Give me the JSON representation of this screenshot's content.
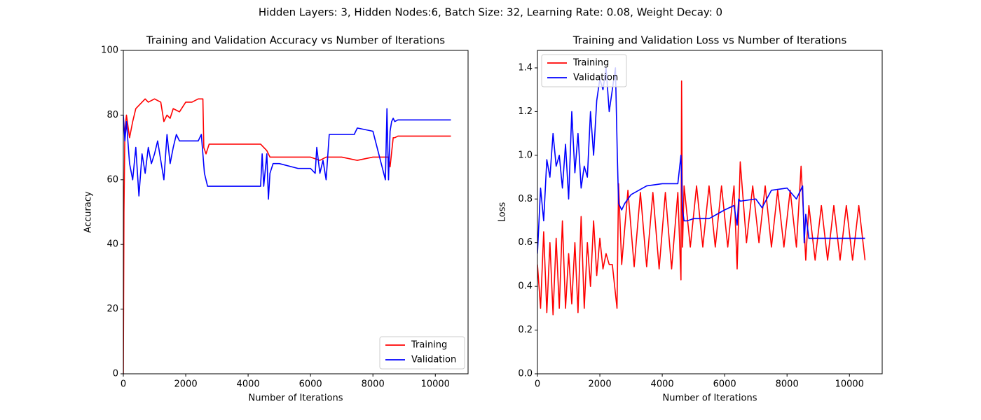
{
  "title": "Hidden Layers: 3, Hidden Nodes:6, Batch Size: 32, Learning Rate: 0.08, Weight Decay: 0",
  "chart_data": [
    {
      "type": "line",
      "title": "Training and Validation Accuracy vs Number of Iterations",
      "x_label": "Number of Iterations",
      "y_label": "Accuracy",
      "xlim": [
        0,
        11050
      ],
      "ylim": [
        0,
        100
      ],
      "xticks": [
        0,
        2000,
        4000,
        6000,
        8000,
        10000
      ],
      "yticks": [
        0,
        20,
        40,
        60,
        80,
        100
      ],
      "legend": "lower right",
      "series": [
        {
          "name": "Training",
          "color": "#ff0000",
          "x": [
            0,
            20,
            50,
            100,
            200,
            300,
            400,
            500,
            600,
            700,
            800,
            1000,
            1200,
            1300,
            1400,
            1500,
            1600,
            1800,
            2000,
            2200,
            2400,
            2550,
            2580,
            2650,
            2750,
            3000,
            4000,
            4400,
            4500,
            4600,
            4700,
            4800,
            6000,
            6300,
            6500,
            7000,
            7500,
            8000,
            8500,
            8550,
            8650,
            8700,
            8800,
            10500
          ],
          "values": [
            0,
            50,
            75,
            80,
            73,
            78,
            82,
            83,
            84,
            85,
            84,
            85,
            84,
            78,
            80,
            79,
            82,
            81,
            84,
            84,
            85,
            85,
            70,
            68,
            71,
            71,
            71,
            71,
            70,
            69,
            67,
            67,
            67,
            66,
            67,
            67,
            66,
            67,
            67,
            64,
            73,
            73,
            73.5,
            73.5
          ]
        },
        {
          "name": "Validation",
          "color": "#0000ff",
          "x": [
            0,
            50,
            100,
            200,
            300,
            400,
            500,
            600,
            700,
            800,
            900,
            1000,
            1100,
            1200,
            1300,
            1400,
            1500,
            1600,
            1700,
            1800,
            1900,
            2000,
            2200,
            2400,
            2500,
            2600,
            2650,
            2700,
            2800,
            3000,
            4400,
            4450,
            4500,
            4600,
            4650,
            4700,
            4800,
            5000,
            5600,
            6000,
            6150,
            6200,
            6300,
            6400,
            6500,
            6600,
            7000,
            7400,
            7500,
            8000,
            8400,
            8450,
            8500,
            8550,
            8600,
            8650,
            8700,
            8800,
            10500
          ],
          "values": [
            80,
            72,
            78,
            65,
            60,
            70,
            55,
            68,
            62,
            70,
            65,
            68,
            72,
            66,
            60,
            74,
            65,
            70,
            74,
            72,
            72,
            72,
            72,
            72,
            74,
            62,
            60,
            58,
            58,
            58,
            58,
            68,
            58,
            68,
            54,
            62,
            65,
            65,
            63.5,
            63.5,
            62,
            70,
            62,
            66,
            60,
            74,
            74,
            74,
            76,
            75,
            60,
            82,
            60,
            75,
            78,
            79,
            78,
            78.5,
            78.5
          ]
        }
      ]
    },
    {
      "type": "line",
      "title": "Training and Validation Loss vs Number of Iterations",
      "x_label": "Number of Iterations",
      "y_label": "Loss",
      "xlim": [
        0,
        11050
      ],
      "ylim": [
        0,
        1.48
      ],
      "xticks": [
        0,
        2000,
        4000,
        6000,
        8000,
        10000
      ],
      "yticks": [
        {
          "value": 0,
          "label": "0.0"
        },
        0.2,
        0.4,
        0.6,
        0.8,
        {
          "value": 1,
          "label": "1.0"
        },
        1.2,
        1.4
      ],
      "legend": "upper left",
      "series": [
        {
          "name": "Training",
          "color": "#ff0000",
          "x": [
            0,
            100,
            200,
            300,
            400,
            500,
            600,
            700,
            800,
            900,
            1000,
            1100,
            1200,
            1300,
            1400,
            1500,
            1600,
            1700,
            1800,
            1900,
            2000,
            2100,
            2200,
            2300,
            2400,
            2550,
            2600,
            2700,
            2900,
            3100,
            3300,
            3500,
            3700,
            3900,
            4100,
            4300,
            4500,
            4600,
            4620,
            4650,
            4700,
            4900,
            5100,
            5300,
            5500,
            5700,
            5900,
            6100,
            6300,
            6400,
            6500,
            6700,
            6900,
            7100,
            7300,
            7500,
            7700,
            7900,
            8100,
            8300,
            8450,
            8600,
            8700,
            8900,
            9100,
            9300,
            9500,
            9700,
            9900,
            10100,
            10300,
            10500
          ],
          "values": [
            0.5,
            0.3,
            0.65,
            0.28,
            0.6,
            0.27,
            0.62,
            0.3,
            0.7,
            0.3,
            0.55,
            0.32,
            0.6,
            0.28,
            0.72,
            0.3,
            0.6,
            0.4,
            0.7,
            0.45,
            0.62,
            0.48,
            0.55,
            0.5,
            0.5,
            0.3,
            0.87,
            0.5,
            0.84,
            0.49,
            0.83,
            0.49,
            0.83,
            0.48,
            0.83,
            0.48,
            0.83,
            0.43,
            1.34,
            0.58,
            0.86,
            0.58,
            0.86,
            0.58,
            0.86,
            0.58,
            0.86,
            0.58,
            0.86,
            0.48,
            0.97,
            0.6,
            0.86,
            0.6,
            0.86,
            0.58,
            0.84,
            0.58,
            0.84,
            0.58,
            0.95,
            0.52,
            0.77,
            0.52,
            0.77,
            0.52,
            0.77,
            0.52,
            0.77,
            0.52,
            0.77,
            0.52
          ]
        },
        {
          "name": "Validation",
          "color": "#0000ff",
          "x": [
            0,
            100,
            200,
            300,
            400,
            500,
            600,
            700,
            800,
            900,
            1000,
            1100,
            1200,
            1300,
            1400,
            1500,
            1600,
            1700,
            1800,
            1900,
            2000,
            2100,
            2200,
            2300,
            2400,
            2500,
            2560,
            2600,
            2700,
            2800,
            3000,
            3500,
            4000,
            4500,
            4600,
            4650,
            4700,
            4800,
            5000,
            5500,
            6000,
            6300,
            6400,
            6450,
            6500,
            7000,
            7200,
            7500,
            8000,
            8300,
            8500,
            8550,
            8600,
            8700,
            10500
          ],
          "values": [
            0.55,
            0.85,
            0.7,
            0.98,
            0.9,
            1.1,
            0.95,
            1.0,
            0.85,
            1.05,
            0.8,
            1.2,
            0.92,
            1.1,
            0.85,
            0.95,
            0.9,
            1.2,
            1.0,
            1.25,
            1.35,
            1.3,
            1.4,
            1.2,
            1.3,
            1.4,
            1.0,
            0.78,
            0.75,
            0.78,
            0.82,
            0.86,
            0.87,
            0.87,
            1.0,
            0.75,
            0.7,
            0.7,
            0.71,
            0.71,
            0.75,
            0.77,
            0.68,
            0.8,
            0.79,
            0.8,
            0.76,
            0.84,
            0.85,
            0.8,
            0.86,
            0.6,
            0.73,
            0.62,
            0.62
          ]
        }
      ]
    }
  ]
}
